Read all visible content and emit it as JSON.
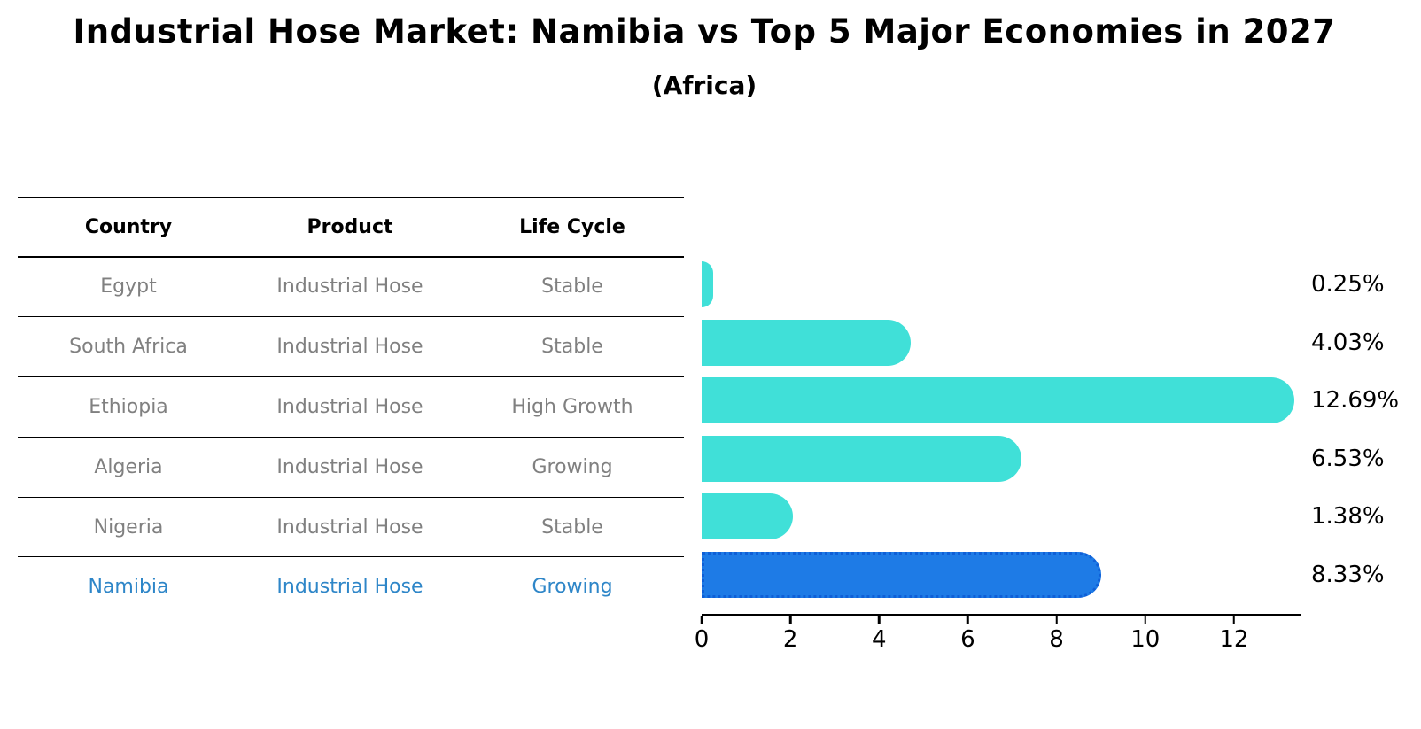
{
  "title": "Industrial Hose Market: Namibia vs Top 5 Major Economies in 2027",
  "subtitle": "(Africa)",
  "table": {
    "headers": [
      "Country",
      "Product",
      "Life Cycle"
    ],
    "rows": [
      {
        "country": "Egypt",
        "product": "Industrial Hose",
        "life_cycle": "Stable",
        "highlighted": false
      },
      {
        "country": "South Africa",
        "product": "Industrial Hose",
        "life_cycle": "Stable",
        "highlighted": false
      },
      {
        "country": "Ethiopia",
        "product": "Industrial Hose",
        "life_cycle": "High Growth",
        "highlighted": false
      },
      {
        "country": "Algeria",
        "product": "Industrial Hose",
        "life_cycle": "Growing",
        "highlighted": false
      },
      {
        "country": "Nigeria",
        "product": "Industrial Hose",
        "life_cycle": "Stable",
        "highlighted": false
      },
      {
        "country": "Namibia",
        "product": "Industrial Hose",
        "life_cycle": "Growing",
        "highlighted": true
      }
    ]
  },
  "chart_data": {
    "type": "bar",
    "orientation": "horizontal",
    "title": "Industrial Hose Market: Namibia vs Top 5 Major Economies in 2027",
    "subtitle": "(Africa)",
    "categories": [
      "Egypt",
      "South Africa",
      "Ethiopia",
      "Algeria",
      "Nigeria",
      "Namibia"
    ],
    "values": [
      0.25,
      4.03,
      12.69,
      6.53,
      1.38,
      8.33
    ],
    "value_labels": [
      "0.25%",
      "4.03%",
      "12.69%",
      "6.53%",
      "1.38%",
      "8.33%"
    ],
    "unit": "%",
    "x_ticks": [
      0,
      2,
      4,
      6,
      8,
      10,
      12
    ],
    "xlim": [
      0,
      13.5
    ],
    "grid": false,
    "bar_color": "#40E0D8",
    "highlight_index": 5,
    "highlight_color": "#1E7BE6",
    "highlight_border_color": "#0F5FD7",
    "highlight_text_color": "#2E86C8",
    "axis_color": "#000000"
  },
  "colors": {
    "row_text": "#808080",
    "header_text": "#000000",
    "table_line": "#000000"
  }
}
